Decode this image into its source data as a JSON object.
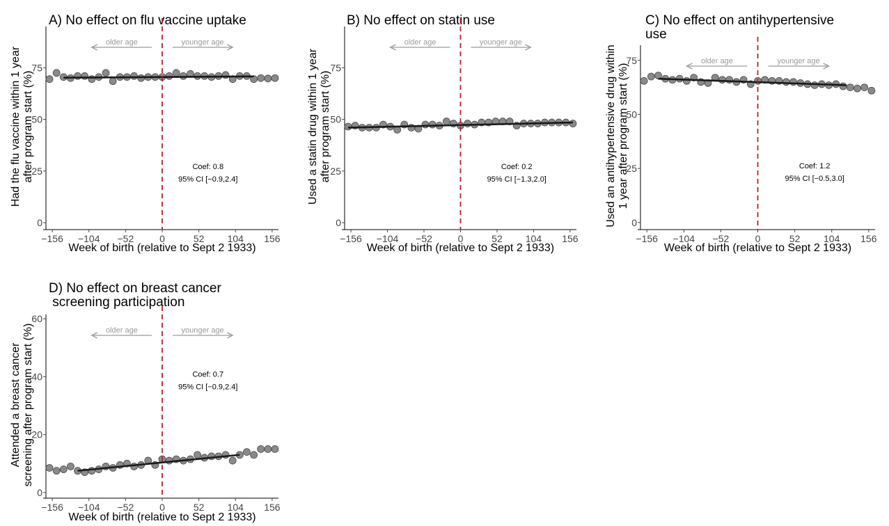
{
  "chart_data": [
    {
      "type": "scatter",
      "panel": "A",
      "title_lines": [
        "A) No effect on flu vaccine uptake"
      ],
      "xlabel": "Week of birth (relative to Sept 2 1933)",
      "ylabel_lines": [
        "Had the flu vaccine within 1 year",
        "after program start (%)"
      ],
      "xticks": [
        -156,
        -104,
        -52,
        0,
        52,
        104,
        156
      ],
      "yticks": [
        0,
        25,
        50,
        75
      ],
      "xlim": [
        -165,
        165
      ],
      "ylim": [
        -2,
        95
      ],
      "grid": false,
      "cutoff_x": 0,
      "arrows": {
        "left": "older age",
        "right": "younger age"
      },
      "annotation": {
        "coef": "Coef: 0.8",
        "ci": "95% CI [−0.9,2.4]",
        "x": 65,
        "y": 26
      },
      "fit": {
        "x": [
          -140,
          130
        ],
        "y": [
          70.2,
          70.8
        ]
      },
      "series": [
        {
          "x": [
            -160,
            -150,
            -140,
            -130,
            -120,
            -110,
            -100,
            -90,
            -80,
            -70,
            -60,
            -50,
            -40,
            -30,
            -20,
            -10,
            0,
            10,
            20,
            30,
            40,
            50,
            60,
            70,
            80,
            90,
            100,
            110,
            120,
            130,
            140,
            150,
            160
          ],
          "y": [
            69.5,
            72.5,
            70.5,
            70,
            71,
            71,
            69.5,
            70.5,
            72.5,
            68.5,
            70.5,
            70.5,
            71,
            70,
            70.5,
            70.5,
            70.5,
            71,
            72.5,
            71,
            72,
            71,
            71,
            70.5,
            71,
            71.5,
            69.5,
            71,
            71,
            69.5,
            70,
            69.8,
            70
          ]
        }
      ]
    },
    {
      "type": "scatter",
      "panel": "B",
      "title_lines": [
        "B) No effect on statin use"
      ],
      "xlabel": "Week of birth (relative to Sept 2 1933)",
      "ylabel_lines": [
        "Used a statin drug within 1 year",
        "after program start (%)"
      ],
      "xticks": [
        -156,
        -104,
        -52,
        0,
        52,
        104,
        156
      ],
      "yticks": [
        0,
        25,
        50,
        75
      ],
      "xlim": [
        -165,
        165
      ],
      "ylim": [
        -2,
        95
      ],
      "grid": false,
      "cutoff_x": 0,
      "arrows": {
        "left": "older age",
        "right": "younger age"
      },
      "annotation": {
        "coef": "Coef: 0.2",
        "ci": "95% CI [−1.3,2.0]",
        "x": 80,
        "y": 26
      },
      "fit": {
        "x": [
          -160,
          160
        ],
        "y": [
          46,
          48.5
        ]
      },
      "series": [
        {
          "x": [
            -160,
            -150,
            -140,
            -130,
            -120,
            -110,
            -100,
            -90,
            -80,
            -70,
            -60,
            -50,
            -40,
            -30,
            -20,
            -10,
            0,
            10,
            20,
            30,
            40,
            50,
            60,
            70,
            80,
            90,
            100,
            110,
            120,
            130,
            140,
            150,
            160
          ],
          "y": [
            46.5,
            47,
            46,
            46,
            46,
            47.5,
            46.5,
            45,
            47.5,
            46,
            45.5,
            47.5,
            47.5,
            47,
            49,
            48,
            47,
            48,
            47.5,
            48.5,
            48.5,
            49,
            49,
            49,
            47,
            48,
            48,
            48,
            48.5,
            48.5,
            48.5,
            48.5,
            48
          ]
        }
      ]
    },
    {
      "type": "scatter",
      "panel": "C",
      "title_lines": [
        "C) No effect on antihypertensive",
        "use"
      ],
      "xlabel": "Week of birth (relative to Sept 2 1933)",
      "ylabel_lines": [
        "Used an antihypertensive drug within",
        "1 year after program start (%)"
      ],
      "xticks": [
        -156,
        -104,
        -52,
        0,
        52,
        104,
        156
      ],
      "yticks": [
        0,
        25,
        50,
        75
      ],
      "xlim": [
        -165,
        165
      ],
      "ylim": [
        -2,
        82
      ],
      "grid": false,
      "cutoff_x": 0,
      "arrows": {
        "left": "older age",
        "right": "younger age"
      },
      "annotation": {
        "coef": "Coef: 1.2",
        "ci": "95% CI [−0.5,3.0]",
        "x": 80,
        "y": 25
      },
      "fit": {
        "x": [
          -140,
          125
        ],
        "y": [
          66.5,
          63.5
        ]
      },
      "series": [
        {
          "x": [
            -160,
            -150,
            -140,
            -130,
            -120,
            -110,
            -100,
            -90,
            -80,
            -70,
            -60,
            -50,
            -40,
            -30,
            -20,
            -10,
            0,
            10,
            20,
            30,
            40,
            50,
            60,
            70,
            80,
            90,
            100,
            110,
            120,
            130,
            140,
            150,
            160
          ],
          "y": [
            65.5,
            67.5,
            68,
            66.5,
            66,
            66.5,
            65.5,
            67,
            65,
            64.5,
            67,
            66,
            66,
            65,
            66,
            64,
            65.5,
            66,
            65.5,
            65.5,
            65,
            65,
            64.5,
            64,
            63.5,
            64,
            63.5,
            64,
            63,
            62.5,
            62,
            62.5,
            61
          ]
        }
      ]
    },
    {
      "type": "scatter",
      "panel": "D",
      "title_lines": [
        "D) No effect on breast cancer",
        " screening participation"
      ],
      "xlabel": "Week of birth (relative to Sept 2 1933)",
      "ylabel_lines": [
        "Attended a breast cancer",
        "screening after program start (%)"
      ],
      "xticks": [
        -156,
        -104,
        -52,
        0,
        52,
        104,
        156
      ],
      "yticks": [
        0,
        20,
        40,
        60
      ],
      "xlim": [
        -165,
        165
      ],
      "ylim": [
        -1,
        61.5
      ],
      "grid": false,
      "cutoff_x": 0,
      "arrows": {
        "left": "older age",
        "right": "younger age"
      },
      "annotation": {
        "coef": "Coef: 0.7",
        "ci": "95% CI [−0.9,2.4]",
        "x": 65,
        "y": 40
      },
      "fit": {
        "x": [
          -120,
          110
        ],
        "y": [
          7.5,
          13
        ]
      },
      "series": [
        {
          "x": [
            -160,
            -150,
            -140,
            -130,
            -120,
            -110,
            -100,
            -90,
            -80,
            -70,
            -60,
            -50,
            -40,
            -30,
            -20,
            -10,
            0,
            10,
            20,
            30,
            40,
            50,
            60,
            70,
            80,
            90,
            100,
            110,
            120,
            130,
            140,
            150,
            160
          ],
          "y": [
            8.5,
            7.5,
            8,
            9,
            7.5,
            7,
            7.5,
            8,
            9,
            8.5,
            9.5,
            10,
            9,
            9.5,
            11,
            9.5,
            11.5,
            11,
            11.5,
            11,
            11.5,
            13,
            12,
            12.5,
            12.5,
            13,
            11,
            13,
            14,
            13,
            15,
            15,
            15
          ]
        }
      ]
    }
  ]
}
